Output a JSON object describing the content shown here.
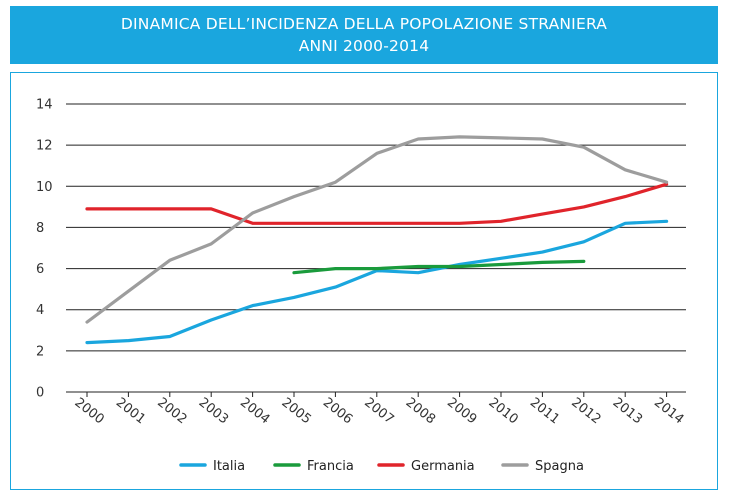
{
  "chart_data": {
    "type": "line",
    "title_line1": "DINAMICA DELL’INCIDENZA DELLA POPOLAZIONE STRANIERA",
    "title_line2": "ANNI 2000-2014",
    "categories": [
      "2000",
      "2001",
      "2002",
      "2003",
      "2004",
      "2005",
      "2006",
      "2007",
      "2008",
      "2009",
      "2010",
      "2011",
      "2012",
      "2013",
      "2014"
    ],
    "ylim": [
      0,
      14
    ],
    "yticks": [
      0,
      2,
      4,
      6,
      8,
      10,
      12,
      14
    ],
    "grid": true,
    "legend_position": "bottom",
    "series": [
      {
        "name": "Italia",
        "color": "#1aa6de",
        "values": [
          2.4,
          2.5,
          2.7,
          3.5,
          4.2,
          4.6,
          5.1,
          5.9,
          5.8,
          6.2,
          6.5,
          6.8,
          7.3,
          8.2,
          8.3
        ]
      },
      {
        "name": "Francia",
        "color": "#1a9b3c",
        "values": [
          null,
          null,
          null,
          null,
          null,
          5.8,
          6.0,
          6.0,
          6.1,
          6.1,
          6.2,
          6.3,
          6.35,
          null,
          null
        ]
      },
      {
        "name": "Germania",
        "color": "#e0242b",
        "values": [
          8.9,
          8.9,
          8.9,
          8.9,
          8.2,
          8.2,
          8.2,
          8.2,
          8.2,
          8.2,
          8.3,
          8.65,
          9.0,
          9.5,
          10.1
        ]
      },
      {
        "name": "Spagna",
        "color": "#9d9d9d",
        "values": [
          3.4,
          4.9,
          6.4,
          7.2,
          8.7,
          9.5,
          10.2,
          11.6,
          12.3,
          12.4,
          12.35,
          12.3,
          11.9,
          10.8,
          10.2
        ]
      }
    ]
  }
}
